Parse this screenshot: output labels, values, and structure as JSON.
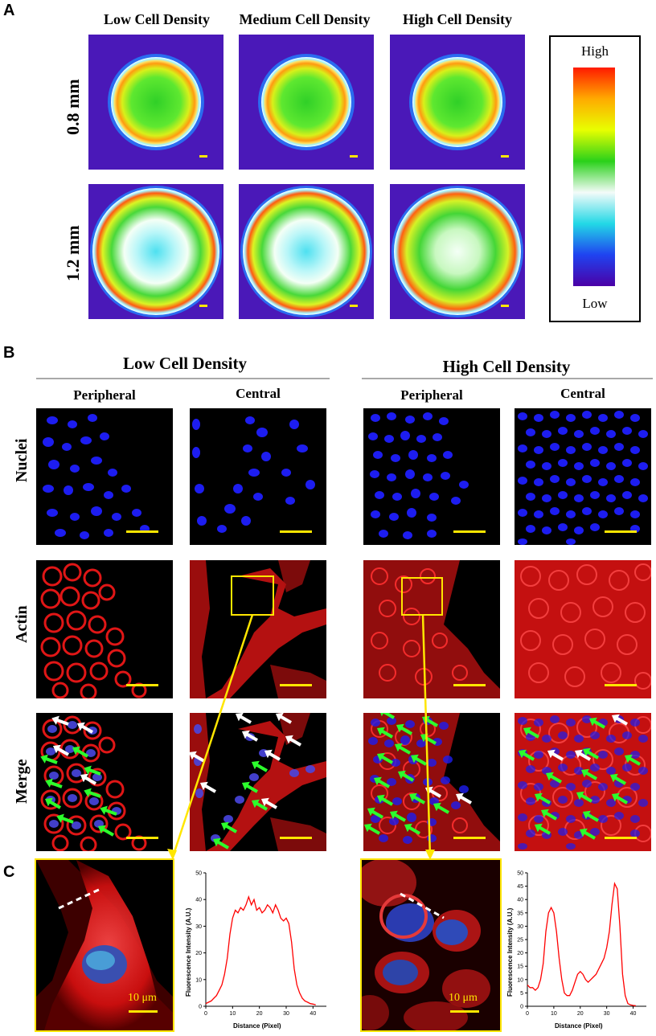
{
  "panels": {
    "a": {
      "letter": "A"
    },
    "b": {
      "letter": "B"
    },
    "c": {
      "letter": "C"
    }
  },
  "panel_a": {
    "columns": [
      "Low Cell Density",
      "Medium Cell Density",
      "High Cell Density"
    ],
    "rows": [
      "0.8 mm",
      "1.2 mm"
    ],
    "colorbar": {
      "high": "High",
      "low": "Low",
      "colors": [
        "#ff1a00",
        "#ffaa00",
        "#e8ff00",
        "#2ad11a",
        "#f4fbf9",
        "#22d8e6",
        "#1f43f0",
        "#4b00a6"
      ]
    }
  },
  "panel_b": {
    "groups": [
      "Low Cell Density",
      "High Cell Density"
    ],
    "subcolumns": [
      "Peripheral",
      "Central",
      "Peripheral",
      "Central"
    ],
    "rows": [
      "Nuclei",
      "Actin",
      "Merge"
    ]
  },
  "panel_c": {
    "scale_label": "10 μm",
    "chart_data": [
      {
        "type": "line",
        "xlabel": "Distance (Pixel)",
        "ylabel": "Fluorescence Intensity (A.U.)",
        "xlim": [
          0,
          45
        ],
        "ylim": [
          0,
          50
        ],
        "xticks": [
          0,
          10,
          20,
          30,
          40
        ],
        "yticks": [
          0,
          10,
          20,
          30,
          40,
          50
        ],
        "x": [
          0,
          1,
          2,
          3,
          4,
          5,
          6,
          7,
          8,
          9,
          10,
          11,
          12,
          13,
          14,
          15,
          16,
          17,
          18,
          19,
          20,
          21,
          22,
          23,
          24,
          25,
          26,
          27,
          28,
          29,
          30,
          31,
          32,
          33,
          34,
          35,
          36,
          37,
          38,
          39,
          40,
          41
        ],
        "y": [
          1,
          1.5,
          2,
          3,
          4,
          6,
          8,
          12,
          18,
          27,
          33,
          36,
          35,
          37,
          36,
          38,
          41,
          38,
          40,
          36,
          37,
          35,
          36,
          38,
          37,
          35,
          38,
          36,
          33,
          32,
          33,
          31,
          24,
          14,
          8,
          5,
          3,
          2,
          1.5,
          1,
          0.8,
          0.5
        ],
        "color": "#ff0000"
      },
      {
        "type": "line",
        "xlabel": "Distance (Pixel)",
        "ylabel": "Fluorescence Intensity (A.U.)",
        "xlim": [
          0,
          45
        ],
        "ylim": [
          0,
          50
        ],
        "xticks": [
          0,
          10,
          20,
          30,
          40
        ],
        "yticks": [
          0,
          5,
          10,
          15,
          20,
          25,
          30,
          35,
          40,
          45,
          50
        ],
        "x": [
          0,
          1,
          2,
          3,
          4,
          5,
          6,
          7,
          8,
          9,
          10,
          11,
          12,
          13,
          14,
          15,
          16,
          17,
          18,
          19,
          20,
          21,
          22,
          23,
          24,
          25,
          26,
          27,
          28,
          29,
          30,
          31,
          32,
          33,
          34,
          35,
          36,
          37,
          38,
          39,
          40,
          41
        ],
        "y": [
          8,
          7,
          7,
          6,
          7,
          10,
          16,
          28,
          35,
          37,
          35,
          28,
          18,
          10,
          5,
          4,
          4,
          6,
          9,
          12,
          13,
          12,
          10,
          9,
          10,
          11,
          12,
          14,
          16,
          18,
          22,
          28,
          38,
          46,
          44,
          30,
          12,
          4,
          1,
          0.5,
          0.3,
          0.2
        ],
        "color": "#ff0000"
      }
    ]
  }
}
